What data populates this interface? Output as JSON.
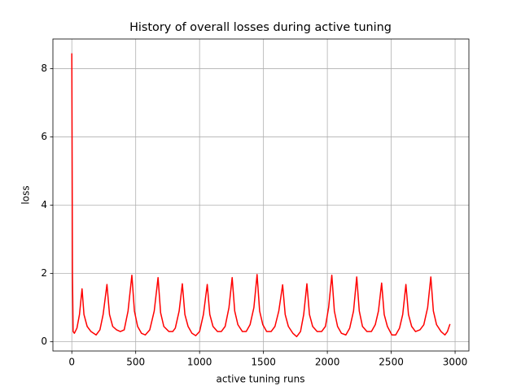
{
  "chart_data": {
    "type": "line",
    "title": "History of overall losses during active tuning",
    "x_label": "active tuning runs",
    "y_label": "loss",
    "x": [
      0,
      5,
      10,
      20,
      40,
      60,
      80,
      95,
      120,
      150,
      190,
      220,
      245,
      275,
      295,
      320,
      350,
      380,
      410,
      440,
      470,
      490,
      515,
      545,
      575,
      610,
      645,
      675,
      695,
      720,
      760,
      790,
      810,
      840,
      865,
      885,
      910,
      940,
      970,
      1000,
      1030,
      1060,
      1080,
      1105,
      1140,
      1170,
      1200,
      1230,
      1255,
      1275,
      1300,
      1335,
      1365,
      1395,
      1425,
      1450,
      1470,
      1495,
      1525,
      1560,
      1590,
      1620,
      1650,
      1670,
      1695,
      1730,
      1760,
      1790,
      1815,
      1840,
      1860,
      1885,
      1920,
      1955,
      1985,
      2010,
      2035,
      2055,
      2080,
      2110,
      2145,
      2175,
      2205,
      2230,
      2250,
      2275,
      2310,
      2345,
      2375,
      2400,
      2425,
      2445,
      2470,
      2505,
      2535,
      2565,
      2590,
      2615,
      2635,
      2660,
      2690,
      2725,
      2755,
      2785,
      2810,
      2830,
      2855,
      2890,
      2920,
      2940,
      2960
    ],
    "series": [
      {
        "color": "#ff0000",
        "values": [
          8.45,
          2.0,
          0.3,
          0.25,
          0.4,
          0.8,
          1.55,
          0.8,
          0.45,
          0.3,
          0.2,
          0.35,
          0.8,
          1.68,
          0.8,
          0.45,
          0.35,
          0.3,
          0.35,
          0.9,
          1.95,
          0.9,
          0.45,
          0.25,
          0.2,
          0.35,
          0.9,
          1.88,
          0.85,
          0.45,
          0.3,
          0.3,
          0.4,
          0.9,
          1.7,
          0.8,
          0.45,
          0.25,
          0.18,
          0.3,
          0.8,
          1.68,
          0.8,
          0.45,
          0.3,
          0.3,
          0.45,
          1.0,
          1.88,
          0.9,
          0.5,
          0.3,
          0.3,
          0.5,
          1.0,
          1.97,
          0.9,
          0.5,
          0.3,
          0.3,
          0.45,
          0.9,
          1.67,
          0.8,
          0.45,
          0.25,
          0.15,
          0.3,
          0.8,
          1.7,
          0.8,
          0.45,
          0.3,
          0.3,
          0.45,
          1.0,
          1.95,
          0.9,
          0.45,
          0.25,
          0.2,
          0.4,
          0.9,
          1.9,
          0.9,
          0.45,
          0.3,
          0.3,
          0.5,
          0.9,
          1.72,
          0.8,
          0.45,
          0.2,
          0.2,
          0.4,
          0.8,
          1.68,
          0.8,
          0.45,
          0.3,
          0.35,
          0.5,
          1.0,
          1.9,
          0.9,
          0.5,
          0.3,
          0.2,
          0.3,
          0.52
        ]
      }
    ],
    "xlim": [
      -148,
      3108
    ],
    "ylim": [
      -0.27,
      8.87
    ],
    "xticks": [
      0,
      500,
      1000,
      1500,
      2000,
      2500,
      3000
    ],
    "yticks": [
      0,
      2,
      4,
      6,
      8
    ],
    "grid": true
  }
}
